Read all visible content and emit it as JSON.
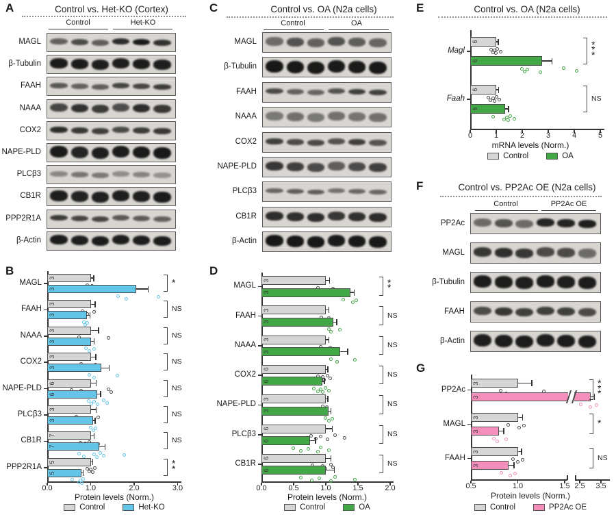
{
  "figure": {
    "colors": {
      "control_fill": "#d6d6d6",
      "hetko_blue": "#63c6e9",
      "oa_green": "#42a747",
      "pp2ac_pink": "#f48fbc",
      "bar_border": "#4d4d4d",
      "control_dot": "#4a4a4a",
      "band_color": "#151515",
      "blot_bg": "#d9d6d2"
    }
  },
  "blots": {
    "A": {
      "panel_label": "A",
      "title": "Control vs. Het-KO (Cortex)",
      "groups": [
        "Control",
        "Het-KO"
      ],
      "rows": [
        {
          "label": "MAGL",
          "intensities": [
            0.6,
            0.72,
            0.62,
            0.88,
            0.97,
            0.85
          ],
          "thickness": 0.33
        },
        {
          "label": "β-Tubulin",
          "intensities": [
            0.97,
            0.97,
            0.95,
            0.95,
            0.96,
            0.95
          ],
          "thickness": 0.52
        },
        {
          "label": "FAAH",
          "intensities": [
            0.65,
            0.6,
            0.62,
            0.75,
            0.75,
            0.8
          ],
          "thickness": 0.27
        },
        {
          "label": "NAAA",
          "intensities": [
            0.75,
            0.85,
            0.8,
            0.7,
            0.88,
            0.82
          ],
          "thickness": 0.45
        },
        {
          "label": "COX2",
          "intensities": [
            0.88,
            0.82,
            0.78,
            0.72,
            0.8,
            0.82
          ],
          "thickness": 0.32
        },
        {
          "label": "NAPE-PLD",
          "intensities": [
            0.97,
            0.92,
            0.95,
            0.96,
            0.97,
            0.98
          ],
          "thickness": 0.62
        },
        {
          "label": "PLCβ3",
          "intensities": [
            0.4,
            0.5,
            0.48,
            0.38,
            0.42,
            0.35
          ],
          "thickness": 0.28
        },
        {
          "label": "CB1R",
          "intensities": [
            0.95,
            0.93,
            0.94,
            0.95,
            0.94,
            0.96
          ],
          "thickness": 0.55
        },
        {
          "label": "PPP2R1A",
          "intensities": [
            0.8,
            0.75,
            0.75,
            0.65,
            0.63,
            0.6
          ],
          "thickness": 0.3
        },
        {
          "label": "β-Actin",
          "intensities": [
            0.96,
            0.95,
            0.96,
            0.95,
            0.95,
            0.96
          ],
          "thickness": 0.5
        }
      ]
    },
    "C": {
      "panel_label": "C",
      "title": "Control vs. OA (N2a cells)",
      "groups": [
        "Control",
        "OA"
      ],
      "rows": [
        {
          "label": "MAGL",
          "intensities": [
            0.55,
            0.68,
            0.6,
            0.68,
            0.62,
            0.58
          ],
          "thickness": 0.42
        },
        {
          "label": "β-Tubulin",
          "intensities": [
            0.98,
            0.98,
            0.97,
            0.97,
            0.97,
            0.98
          ],
          "thickness": 0.62
        },
        {
          "label": "FAAH",
          "intensities": [
            0.72,
            0.6,
            0.58,
            0.68,
            0.78,
            0.78
          ],
          "thickness": 0.28
        },
        {
          "label": "NAAA",
          "intensities": [
            0.48,
            0.52,
            0.48,
            0.52,
            0.5,
            0.52
          ],
          "thickness": 0.42
        },
        {
          "label": "COX2",
          "intensities": [
            0.78,
            0.72,
            0.72,
            0.68,
            0.78,
            0.68
          ],
          "thickness": 0.3
        },
        {
          "label": "NAPE-PLD",
          "intensities": [
            0.82,
            0.78,
            0.72,
            0.62,
            0.72,
            0.78
          ],
          "thickness": 0.42
        },
        {
          "label": "PLCβ3",
          "intensities": [
            0.58,
            0.62,
            0.62,
            0.52,
            0.58,
            0.58
          ],
          "thickness": 0.24
        },
        {
          "label": "CB1R",
          "intensities": [
            0.88,
            0.86,
            0.87,
            0.82,
            0.86,
            0.88
          ],
          "thickness": 0.42
        },
        {
          "label": "β-Actin",
          "intensities": [
            0.98,
            0.98,
            0.98,
            0.97,
            0.98,
            0.98
          ],
          "thickness": 0.55
        }
      ]
    },
    "F": {
      "panel_label": "F",
      "title": "Control vs. PP2Ac OE (N2a cells)",
      "groups": [
        "Control",
        "PP2Ac OE"
      ],
      "rows": [
        {
          "label": "PP2Ac",
          "intensities": [
            0.55,
            0.68,
            0.55,
            0.92,
            0.92,
            0.95
          ],
          "thickness": 0.38
        },
        {
          "label": "MAGL",
          "intensities": [
            0.82,
            0.86,
            0.82,
            0.72,
            0.72,
            0.55
          ],
          "thickness": 0.42
        },
        {
          "label": "β-Tubulin",
          "intensities": [
            0.96,
            0.96,
            0.95,
            0.96,
            0.95,
            0.96
          ],
          "thickness": 0.55
        },
        {
          "label": "FAAH",
          "intensities": [
            0.72,
            0.82,
            0.78,
            0.78,
            0.78,
            0.72
          ],
          "thickness": 0.4
        },
        {
          "label": "β-Actin",
          "intensities": [
            0.95,
            0.96,
            0.96,
            0.95,
            0.96,
            0.96
          ],
          "thickness": 0.6
        }
      ]
    }
  },
  "chart_data": [
    {
      "id": "B",
      "panel_label": "B",
      "type": "bar",
      "orientation": "horizontal",
      "xlabel": "Protein levels (Norm.)",
      "xlim": [
        0,
        3
      ],
      "xticks": [
        {
          "v": 0,
          "label": "0.0"
        },
        {
          "v": 1,
          "label": "1.0"
        },
        {
          "v": 2,
          "label": "2.0"
        },
        {
          "v": 3,
          "label": "3.0"
        }
      ],
      "categories": [
        "MAGL",
        "FAAH",
        "NAAA",
        "COX2",
        "NAPE-PLD",
        "PLCβ3",
        "CB1R",
        "PPP2R1A"
      ],
      "italic_categories": false,
      "series": [
        {
          "name": "Control",
          "color": "#d6d6d6",
          "dot_color": "#4a4a4a",
          "values": [
            1.0,
            1.0,
            1.0,
            1.0,
            1.0,
            1.0,
            1.0,
            1.0
          ],
          "errors": [
            0.07,
            0.1,
            0.18,
            0.12,
            0.13,
            0.13,
            0.08,
            0.05
          ],
          "n": [
            3,
            3,
            3,
            3,
            6,
            3,
            7,
            5
          ],
          "dots": [
            [
              0.93,
              0.98,
              1.04
            ],
            [
              0.82,
              0.93,
              1.08
            ],
            [
              0.73,
              0.92,
              1.42
            ],
            [
              0.78,
              0.95,
              1.12
            ],
            [
              0.57,
              0.75,
              0.79,
              0.92,
              1.42,
              1.47
            ],
            [
              0.68,
              0.98,
              1.18
            ],
            [
              0.77,
              0.83,
              0.88,
              0.93,
              0.98,
              1.1,
              1.18
            ],
            [
              0.93,
              0.98,
              1.0,
              1.05,
              1.1
            ]
          ]
        },
        {
          "name": "Het-KO",
          "color": "#63c6e9",
          "dot_color": "#63c6e9",
          "values": [
            2.05,
            0.92,
            1.0,
            1.25,
            1.15,
            1.05,
            1.2,
            0.78
          ],
          "errors": [
            0.27,
            0.06,
            0.08,
            0.18,
            0.08,
            0.05,
            0.13,
            0.05
          ],
          "n": [
            3,
            3,
            3,
            3,
            6,
            3,
            7,
            5
          ],
          "dots": [
            [
              1.63,
              1.82,
              2.57
            ],
            [
              0.84,
              0.88,
              0.93
            ],
            [
              0.9,
              0.97,
              1.08
            ],
            [
              0.97,
              1.08,
              1.62
            ],
            [
              0.95,
              1.02,
              1.08,
              1.17,
              1.3,
              1.38
            ],
            [
              1.0,
              1.06,
              1.12
            ],
            [
              0.73,
              0.85,
              1.08,
              1.15,
              1.23,
              1.3,
              1.78
            ],
            [
              0.58,
              0.73,
              0.77,
              0.8,
              0.83
            ]
          ]
        }
      ],
      "sig": [
        "*",
        "NS",
        "NS",
        "NS",
        "NS",
        "NS",
        "NS",
        "**"
      ],
      "legend": [
        "Control",
        "Het-KO"
      ]
    },
    {
      "id": "D",
      "panel_label": "D",
      "type": "bar",
      "orientation": "horizontal",
      "xlabel": "Protein levels (Norm.)",
      "xlim": [
        0,
        2
      ],
      "xticks": [
        {
          "v": 0,
          "label": "0.0"
        },
        {
          "v": 0.5,
          "label": "0.5"
        },
        {
          "v": 1,
          "label": "1.0"
        },
        {
          "v": 1.5,
          "label": "1.5"
        },
        {
          "v": 2,
          "label": "2.0"
        }
      ],
      "categories": [
        "MAGL",
        "FAAH",
        "NAAA",
        "COX2",
        "NAPE-PLD",
        "PLCβ3",
        "CB1R"
      ],
      "italic_categories": false,
      "series": [
        {
          "name": "Control",
          "color": "#d6d6d6",
          "dot_color": "#4a4a4a",
          "values": [
            1.0,
            1.0,
            1.0,
            1.0,
            1.0,
            1.0,
            1.0
          ],
          "errors": [
            0.06,
            0.05,
            0.05,
            0.03,
            0.03,
            0.1,
            0.08
          ],
          "n": [
            3,
            3,
            3,
            6,
            3,
            6,
            6
          ],
          "dots": [
            [
              0.88,
              0.95,
              1.12
            ],
            [
              0.93,
              0.97,
              1.05
            ],
            [
              0.92,
              0.96,
              1.07
            ],
            [
              0.88,
              0.92,
              0.95,
              0.98,
              1.03,
              1.07
            ],
            [
              0.95,
              0.99,
              1.02
            ],
            [
              0.77,
              0.85,
              0.92,
              1.03,
              1.15,
              1.3
            ],
            [
              0.8,
              0.85,
              0.95,
              1.0,
              1.08,
              1.12
            ]
          ]
        },
        {
          "name": "OA",
          "color": "#42a747",
          "dot_color": "#42a747",
          "values": [
            1.38,
            1.12,
            1.22,
            0.95,
            1.04,
            0.76,
            1.0
          ],
          "errors": [
            0.06,
            0.05,
            0.12,
            0.03,
            0.04,
            0.08,
            0.13
          ],
          "n": [
            3,
            3,
            3,
            6,
            3,
            6,
            6
          ],
          "dots": [
            [
              1.27,
              1.42,
              1.48
            ],
            [
              1.05,
              1.08,
              1.22
            ],
            [
              1.08,
              1.18,
              1.45
            ],
            [
              0.82,
              0.88,
              0.92,
              0.95,
              1.0,
              1.05
            ],
            [
              1.0,
              1.05,
              1.1
            ],
            [
              0.5,
              0.62,
              0.73,
              0.88,
              0.92,
              1.05
            ],
            [
              0.62,
              0.78,
              0.9,
              1.08,
              1.15,
              1.45
            ]
          ]
        }
      ],
      "sig": [
        "**",
        "NS",
        "NS",
        "NS",
        "NS",
        "NS",
        "NS"
      ],
      "legend": [
        "Control",
        "OA"
      ]
    },
    {
      "id": "E",
      "panel_label": "E",
      "type": "bar",
      "orientation": "horizontal",
      "title": "Control vs. OA (N2a cells)",
      "xlabel": "mRNA levels (Norm.)",
      "xlim": [
        0,
        5
      ],
      "xticks": [
        {
          "v": 0,
          "label": "0"
        },
        {
          "v": 1,
          "label": "1"
        },
        {
          "v": 2,
          "label": "2"
        },
        {
          "v": 3,
          "label": "3"
        },
        {
          "v": 4,
          "label": "4"
        },
        {
          "v": 5,
          "label": "5"
        }
      ],
      "categories": [
        "Magl",
        "Faah"
      ],
      "italic_categories": true,
      "series": [
        {
          "name": "Control",
          "color": "#d6d6d6",
          "dot_color": "#4a4a4a",
          "values": [
            1.0,
            1.0
          ],
          "errors": [
            0.08,
            0.1
          ],
          "n": [
            6,
            6
          ],
          "dots": [
            [
              0.82,
              0.9,
              0.95,
              1.0,
              1.05,
              1.18
            ],
            [
              0.7,
              0.78,
              0.88,
              0.95,
              1.02,
              1.12
            ]
          ]
        },
        {
          "name": "OA",
          "color": "#42a747",
          "dot_color": "#42a747",
          "values": [
            2.75,
            1.35
          ],
          "errors": [
            0.4,
            0.12
          ],
          "n": [
            6,
            6
          ],
          "dots": [
            [
              2.0,
              2.1,
              2.2,
              2.7,
              3.6,
              4.1
            ],
            [
              0.88,
              1.3,
              1.42,
              1.48,
              1.55,
              1.7
            ]
          ]
        }
      ],
      "sig": [
        "***",
        "NS"
      ],
      "legend": [
        "Control",
        "OA"
      ]
    },
    {
      "id": "G",
      "panel_label": "G",
      "type": "bar",
      "orientation": "horizontal",
      "xlabel": "Protein levels (Norm.)",
      "xlim": [
        0.5,
        3.5
      ],
      "axis_break": {
        "between": [
          1.5,
          2.5
        ]
      },
      "xticks": [
        {
          "v": 0.5,
          "label": "0.5"
        },
        {
          "v": 1,
          "label": "1.0"
        },
        {
          "v": 1.5,
          "label": "1.5"
        },
        {
          "v": 2.5,
          "label": "2.5"
        },
        {
          "v": 3.5,
          "label": "3.5"
        }
      ],
      "categories": [
        "PP2Ac",
        "MAGL",
        "FAAH"
      ],
      "italic_categories": false,
      "series": [
        {
          "name": "Control",
          "color": "#d6d6d6",
          "dot_color": "#4a4a4a",
          "values": [
            1.0,
            1.0,
            1.0
          ],
          "errors": [
            0.15,
            0.05,
            0.04
          ],
          "n": [
            3,
            3,
            3
          ],
          "dots": [
            [
              0.82,
              0.88,
              1.28
            ],
            [
              0.9,
              1.02,
              1.07
            ],
            [
              0.95,
              1.0,
              1.05
            ]
          ]
        },
        {
          "name": "PP2Ac OE",
          "color": "#f48fbc",
          "dot_color": "#f48fbc",
          "values": [
            3.0,
            0.8,
            0.9
          ],
          "errors": [
            0.2,
            0.05,
            0.06
          ],
          "n": [
            3,
            3,
            3
          ],
          "dots": [
            [
              2.55,
              3.0,
              3.3
            ],
            [
              0.75,
              0.78,
              0.88
            ],
            [
              0.83,
              0.92,
              0.97
            ]
          ]
        }
      ],
      "sig": [
        "***",
        "*",
        "NS"
      ],
      "legend": [
        "Control",
        "PP2Ac OE"
      ]
    }
  ]
}
